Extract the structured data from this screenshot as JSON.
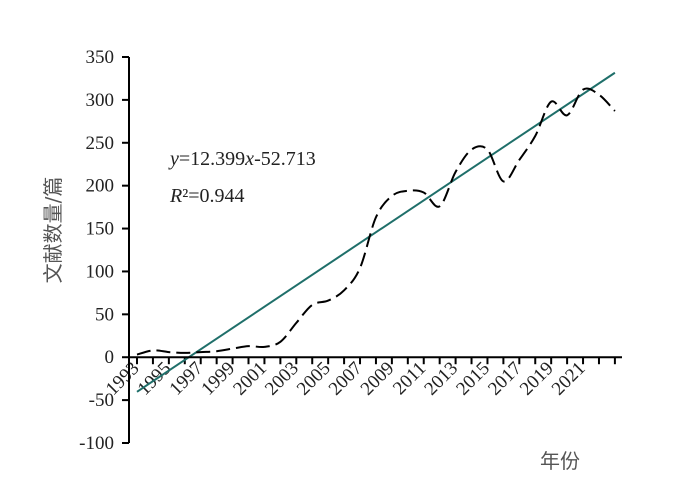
{
  "chart_data": {
    "type": "line",
    "xlabel": "年份",
    "ylabel": "文献数量/篇",
    "ylim": [
      -100,
      350
    ],
    "y_ticks": [
      -100,
      -50,
      0,
      50,
      100,
      150,
      200,
      250,
      300,
      350
    ],
    "x_tick_labels": [
      "1993",
      "1995",
      "1997",
      "1999",
      "2001",
      "2003",
      "2005",
      "2007",
      "2009",
      "2011",
      "2013",
      "2015",
      "2017",
      "2019",
      "2021"
    ],
    "grid": false,
    "series": [
      {
        "style": "dashed",
        "x": [
          1993,
          1994,
          1995,
          1996,
          1997,
          1998,
          1999,
          2000,
          2001,
          2002,
          2003,
          2004,
          2005,
          2006,
          2007,
          2008,
          2009,
          2010,
          2011,
          2012,
          2013,
          2014,
          2015,
          2016,
          2017,
          2018,
          2019,
          2020,
          2021,
          2022,
          2023
        ],
        "values": [
          3,
          8,
          6,
          5,
          6,
          7,
          10,
          13,
          12,
          18,
          40,
          61,
          66,
          78,
          104,
          163,
          188,
          194,
          192,
          176,
          216,
          242,
          242,
          205,
          230,
          258,
          298,
          282,
          312,
          306,
          287
        ]
      },
      {
        "style": "solid",
        "kind": "trendline",
        "slope": 12.399,
        "intercept": -52.713
      }
    ],
    "trend_equation": {
      "y": "y",
      "mid": "=12.399",
      "x": "x",
      "tail": "-52.713"
    },
    "r_squared": {
      "r": "R",
      "tail": "²=0.944"
    },
    "colors": {
      "data_line": "#000000",
      "trend_line": "#1f6f6a",
      "axis": "#000000"
    }
  }
}
